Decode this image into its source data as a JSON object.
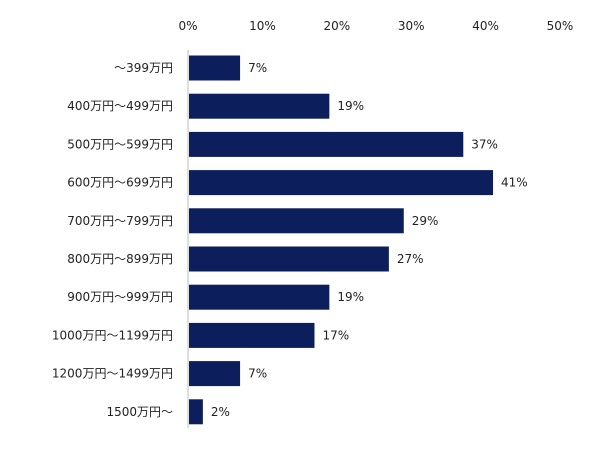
{
  "chart_data": {
    "type": "bar",
    "orientation": "horizontal",
    "title": "",
    "xlabel": "",
    "ylabel": "",
    "xlim": [
      0,
      50
    ],
    "ticks": [
      "0%",
      "10%",
      "20%",
      "30%",
      "40%",
      "50%"
    ],
    "tick_values": [
      0,
      10,
      20,
      30,
      40,
      50
    ],
    "axis_position": "top",
    "grid": false,
    "legend": "none",
    "bar_color": "#0c1f5c",
    "categories": [
      "～399万円",
      "400万円～499万円",
      "500万円～599万円",
      "600万円～699万円",
      "700万円～799万円",
      "800万円～899万円",
      "900万円～999万円",
      "1000万円～1199万円",
      "1200万円～1499万円",
      "1500万円～"
    ],
    "values": [
      7,
      19,
      37,
      41,
      29,
      27,
      19,
      17,
      7,
      2
    ],
    "value_labels": [
      "7%",
      "19%",
      "37%",
      "41%",
      "29%",
      "27%",
      "19%",
      "17%",
      "7%",
      "2%"
    ]
  }
}
